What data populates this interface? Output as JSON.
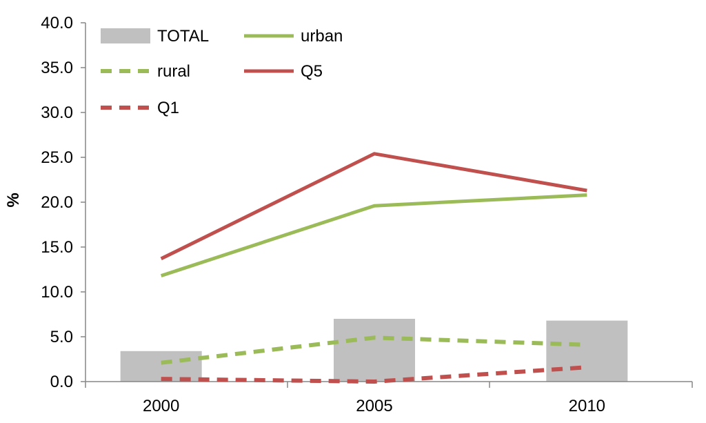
{
  "chart_data": {
    "type": "bar+line",
    "title": "",
    "xlabel": "",
    "ylabel": "%",
    "ylim": [
      0,
      40
    ],
    "ytick_step": 5,
    "y_tick_labels": [
      "0.0",
      "5.0",
      "10.0",
      "15.0",
      "20.0",
      "25.0",
      "30.0",
      "35.0",
      "40.0"
    ],
    "categories": [
      "2000",
      "2005",
      "2010"
    ],
    "bar_series": [
      {
        "name": "TOTAL",
        "values": [
          3.4,
          7.0,
          6.8
        ],
        "color": "#c0c0c0"
      }
    ],
    "line_series": [
      {
        "name": "urban",
        "values": [
          11.8,
          19.6,
          20.8
        ],
        "color": "#9bbb59",
        "dashed": false
      },
      {
        "name": "rural",
        "values": [
          2.1,
          4.9,
          4.1
        ],
        "color": "#9bbb59",
        "dashed": true
      },
      {
        "name": "Q5",
        "values": [
          13.7,
          25.4,
          21.3
        ],
        "color": "#c0504d",
        "dashed": false
      },
      {
        "name": "Q1",
        "values": [
          0.3,
          0.0,
          1.6
        ],
        "color": "#c0504d",
        "dashed": true
      }
    ],
    "legend": {
      "placement": "top-left",
      "entries": [
        "TOTAL",
        "urban",
        "rural",
        "Q5",
        "Q1"
      ]
    },
    "grid": false
  }
}
